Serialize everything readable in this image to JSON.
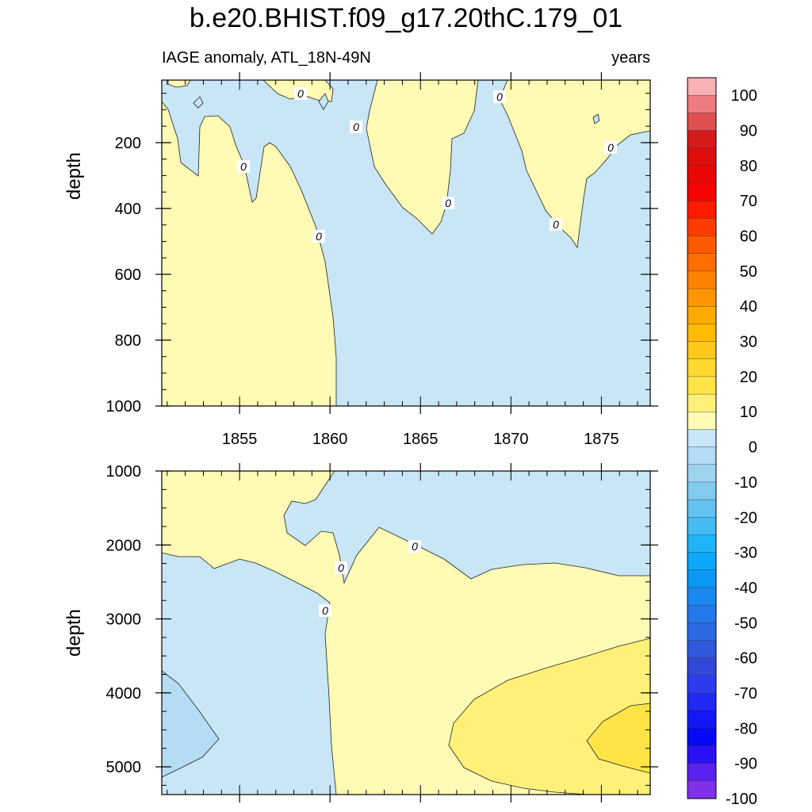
{
  "chart_data": {
    "type": "contour",
    "title": "b.e20.BHIST.f09_g17.20thC.179_01",
    "subtitle_left": "IAGE anomaly, ATL_18N-49N",
    "subtitle_right": "years",
    "xlabel": "",
    "xlim": [
      1850.7,
      1877.7
    ],
    "xticks": [
      1855,
      1860,
      1865,
      1870,
      1875
    ],
    "contour_label": "0",
    "panels": [
      {
        "name": "upper",
        "ylabel": "depth",
        "ylim": [
          10,
          1000
        ],
        "yticks": [
          200,
          400,
          600,
          800,
          1000
        ]
      },
      {
        "name": "lower",
        "ylabel": "depth",
        "ylim": [
          1000,
          5375
        ],
        "yticks": [
          1000,
          2000,
          3000,
          4000,
          5000
        ]
      }
    ],
    "colorbar": {
      "labels": [
        "100",
        "90",
        "80",
        "70",
        "60",
        "50",
        "40",
        "30",
        "20",
        "10",
        "0",
        "-10",
        "-20",
        "-30",
        "-40",
        "-50",
        "-60",
        "-70",
        "-80",
        "-90",
        "-100"
      ],
      "colors": [
        "#f8b1b5",
        "#ef7a7f",
        "#e05050",
        "#d51a1a",
        "#e00d0d",
        "#eb0606",
        "#f60404",
        "#ff1a00",
        "#ff3c00",
        "#ff5a00",
        "#ff6e00",
        "#ff8200",
        "#ff9600",
        "#ffaa00",
        "#ffbb00",
        "#ffc81a",
        "#ffd830",
        "#ffe448",
        "#fff07a",
        "#fffab4",
        "#c8e6f6",
        "#b4dcf4",
        "#9ed4f0",
        "#82caee",
        "#64c2f0",
        "#46baf2",
        "#1eb4f8",
        "#0aa8f8",
        "#0a98f4",
        "#1a88f0",
        "#2478ea",
        "#2c6ae4",
        "#3058dc",
        "#3448d8",
        "#2c3cec",
        "#2028f4",
        "#1416f8",
        "#0808f8",
        "#2a10f4",
        "#5a22ee",
        "#8030e8"
      ]
    }
  }
}
